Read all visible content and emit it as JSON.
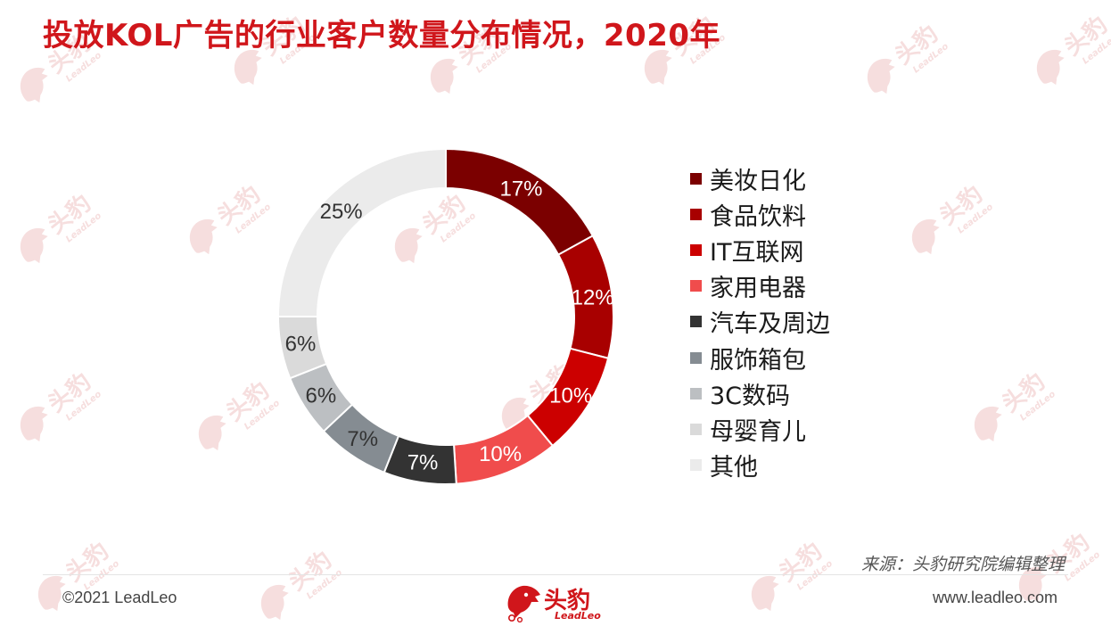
{
  "title": "投放KOL广告的行业客户数量分布情况，2020年",
  "chart_data": {
    "type": "pie",
    "donut": true,
    "categories": [
      "美妆日化",
      "食品饮料",
      "IT互联网",
      "家用电器",
      "汽车及周边",
      "服饰箱包",
      "3C数码",
      "母婴育儿",
      "其他"
    ],
    "values": [
      17,
      12,
      10,
      10,
      7,
      7,
      6,
      6,
      25
    ],
    "data_labels": [
      "17%",
      "12%",
      "10%",
      "10%",
      "7%",
      "7%",
      "6%",
      "6%",
      "25%"
    ],
    "colors": [
      "#7b0000",
      "#a80000",
      "#cc0000",
      "#f04c4c",
      "#333333",
      "#858c92",
      "#bcbfc2",
      "#dadada",
      "#ebebeb"
    ],
    "label_colors": [
      "#ffffff",
      "#ffffff",
      "#ffffff",
      "#ffffff",
      "#ffffff",
      "#333333",
      "#333333",
      "#333333",
      "#333333"
    ],
    "legend_position": "right",
    "title": "投放KOL广告的行业客户数量分布情况，2020年"
  },
  "footer": {
    "source": "来源：头豹研究院编辑整理",
    "copyright": "©2021 LeadLeo",
    "website": "www.leadleo.com",
    "logo_text": "头豹",
    "logo_sub": "LeadLeo"
  },
  "watermark": {
    "text": "头豹",
    "sub": "LeadLeo",
    "color": "#f6dede"
  }
}
